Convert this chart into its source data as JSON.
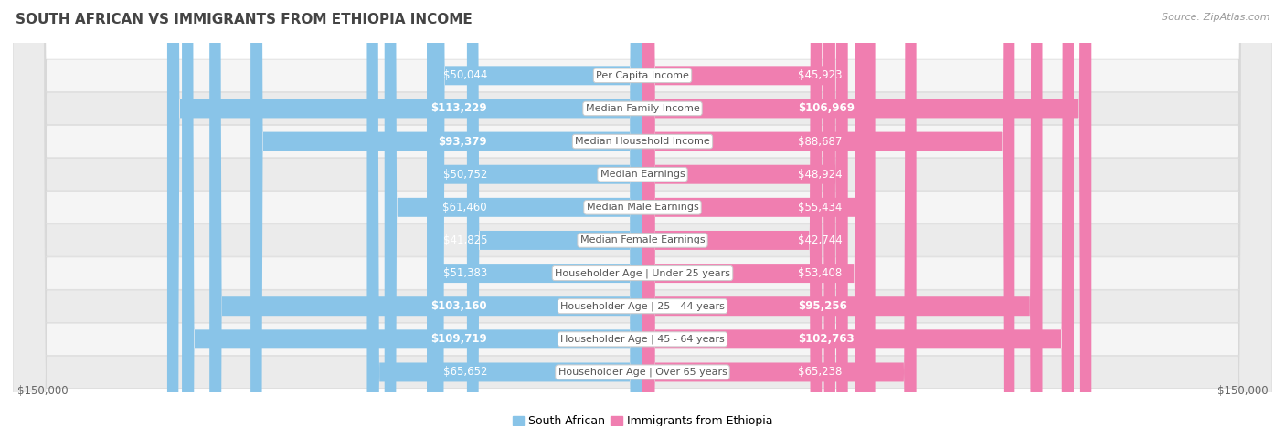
{
  "title": "SOUTH AFRICAN VS IMMIGRANTS FROM ETHIOPIA INCOME",
  "source": "Source: ZipAtlas.com",
  "categories": [
    "Per Capita Income",
    "Median Family Income",
    "Median Household Income",
    "Median Earnings",
    "Median Male Earnings",
    "Median Female Earnings",
    "Householder Age | Under 25 years",
    "Householder Age | 25 - 44 years",
    "Householder Age | 45 - 64 years",
    "Householder Age | Over 65 years"
  ],
  "south_african": [
    50044,
    113229,
    93379,
    50752,
    61460,
    41825,
    51383,
    103160,
    109719,
    65652
  ],
  "ethiopia": [
    45923,
    106969,
    88687,
    48924,
    55434,
    42744,
    53408,
    95256,
    102763,
    65238
  ],
  "max_val": 150000,
  "color_sa": "#89C4E8",
  "color_eth": "#F07EB0",
  "color_sa_dark": "#5B9EC9",
  "color_eth_dark": "#E05090",
  "row_bg_light": "#F5F5F5",
  "row_bg_dark": "#EBEBEB",
  "row_border": "#D8D8D8",
  "title_fontsize": 11,
  "value_fontsize": 8.5,
  "label_fontsize": 8.0,
  "legend_fontsize": 9,
  "axis_fontsize": 8.5,
  "source_fontsize": 8,
  "threshold_inside": 0.25
}
